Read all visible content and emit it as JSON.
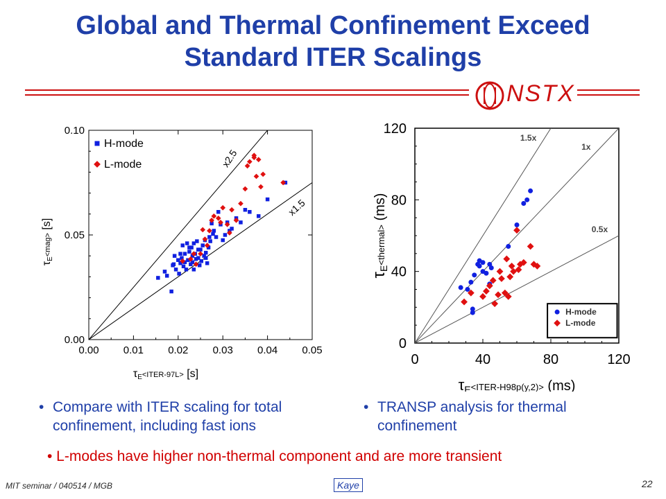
{
  "title": {
    "line1": "Global and Thermal Confinement Exceed",
    "line2": "Standard ITER Scalings"
  },
  "logo": {
    "text": "NSTX",
    "colors": {
      "accent": "#cc1010",
      "title": "#1f3fa8"
    }
  },
  "chart_data": [
    {
      "type": "scatter",
      "xlabel": "τE<ITER-97L> [s]",
      "ylabel": "τE<mag> [s]",
      "xlim": [
        0,
        0.05
      ],
      "ylim": [
        0,
        0.1
      ],
      "xticks": [
        "0.00",
        "0.01",
        "0.02",
        "0.03",
        "0.04",
        "0.05"
      ],
      "yticks": [
        "0.00",
        "0.05",
        "0.10"
      ],
      "lines": [
        {
          "label": "x2.5",
          "slope": 2.5
        },
        {
          "label": "x1.5",
          "slope": 1.5
        }
      ],
      "legend": "top-left",
      "series": [
        {
          "name": "H-mode",
          "color": "#1020e0",
          "marker": "square",
          "points": [
            [
              0.0155,
              0.0295
            ],
            [
              0.017,
              0.0325
            ],
            [
              0.0175,
              0.0305
            ],
            [
              0.0185,
              0.023
            ],
            [
              0.0188,
              0.0355
            ],
            [
              0.019,
              0.036
            ],
            [
              0.0192,
              0.04
            ],
            [
              0.0195,
              0.0335
            ],
            [
              0.02,
              0.038
            ],
            [
              0.0202,
              0.0315
            ],
            [
              0.0205,
              0.041
            ],
            [
              0.0208,
              0.039
            ],
            [
              0.021,
              0.045
            ],
            [
              0.0212,
              0.035
            ],
            [
              0.0215,
              0.037
            ],
            [
              0.0218,
              0.0335
            ],
            [
              0.022,
              0.046
            ],
            [
              0.0222,
              0.038
            ],
            [
              0.0225,
              0.042
            ],
            [
              0.0228,
              0.036
            ],
            [
              0.023,
              0.044
            ],
            [
              0.0232,
              0.037
            ],
            [
              0.0235,
              0.0335
            ],
            [
              0.0238,
              0.041
            ],
            [
              0.024,
              0.0385
            ],
            [
              0.0242,
              0.047
            ],
            [
              0.0245,
              0.039
            ],
            [
              0.0248,
              0.0355
            ],
            [
              0.025,
              0.043
            ],
            [
              0.0252,
              0.0375
            ],
            [
              0.0255,
              0.045
            ],
            [
              0.0258,
              0.04
            ],
            [
              0.026,
              0.0475
            ],
            [
              0.0262,
              0.0415
            ],
            [
              0.0265,
              0.0365
            ],
            [
              0.0268,
              0.044
            ],
            [
              0.027,
              0.049
            ],
            [
              0.0272,
              0.047
            ],
            [
              0.0275,
              0.0555
            ],
            [
              0.0278,
              0.0505
            ],
            [
              0.028,
              0.052
            ],
            [
              0.0285,
              0.049
            ],
            [
              0.029,
              0.061
            ],
            [
              0.0295,
              0.055
            ],
            [
              0.03,
              0.0475
            ],
            [
              0.0305,
              0.05
            ],
            [
              0.031,
              0.056
            ],
            [
              0.0315,
              0.052
            ],
            [
              0.032,
              0.053
            ],
            [
              0.033,
              0.058
            ],
            [
              0.034,
              0.056
            ],
            [
              0.035,
              0.062
            ],
            [
              0.036,
              0.061
            ],
            [
              0.038,
              0.059
            ],
            [
              0.04,
              0.067
            ],
            [
              0.044,
              0.075
            ],
            [
              0.0215,
              0.041
            ],
            [
              0.0225,
              0.044
            ],
            [
              0.0235,
              0.046
            ],
            [
              0.0245,
              0.043
            ],
            [
              0.0205,
              0.0365
            ],
            [
              0.0232,
              0.04
            ],
            [
              0.0262,
              0.039
            ]
          ]
        },
        {
          "name": "L-mode",
          "color": "#e01010",
          "marker": "diamond",
          "points": [
            [
              0.021,
              0.0375
            ],
            [
              0.0228,
              0.0385
            ],
            [
              0.0235,
              0.041
            ],
            [
              0.025,
              0.041
            ],
            [
              0.0255,
              0.0525
            ],
            [
              0.026,
              0.048
            ],
            [
              0.027,
              0.052
            ],
            [
              0.0275,
              0.057
            ],
            [
              0.028,
              0.059
            ],
            [
              0.029,
              0.058
            ],
            [
              0.0295,
              0.056
            ],
            [
              0.03,
              0.063
            ],
            [
              0.031,
              0.055
            ],
            [
              0.032,
              0.062
            ],
            [
              0.033,
              0.057
            ],
            [
              0.034,
              0.065
            ],
            [
              0.035,
              0.072
            ],
            [
              0.0355,
              0.083
            ],
            [
              0.036,
              0.085
            ],
            [
              0.037,
              0.087
            ],
            [
              0.037,
              0.088
            ],
            [
              0.0375,
              0.078
            ],
            [
              0.038,
              0.086
            ],
            [
              0.0385,
              0.073
            ],
            [
              0.039,
              0.079
            ],
            [
              0.0435,
              0.075
            ],
            [
              0.024,
              0.036
            ],
            [
              0.0315,
              0.051
            ],
            [
              0.0265,
              0.045
            ]
          ]
        }
      ]
    },
    {
      "type": "scatter",
      "xlabel": "τE<ITER-H98p(y,2)> (ms)",
      "ylabel": "τE<thermal> (ms)",
      "xlim": [
        0,
        120
      ],
      "ylim": [
        0,
        120
      ],
      "xticks": [
        "0",
        "40",
        "80",
        "120"
      ],
      "yticks": [
        "0",
        "40",
        "80",
        "120"
      ],
      "lines": [
        {
          "label": "1.5x",
          "slope": 1.5
        },
        {
          "label": "1x",
          "slope": 1
        },
        {
          "label": "0.5x",
          "slope": 0.5
        }
      ],
      "legend": "bottom-right",
      "series": [
        {
          "name": "H-mode",
          "color": "#1020e0",
          "marker": "circle",
          "points": [
            [
              27,
              31
            ],
            [
              31,
              30
            ],
            [
              34,
              19
            ],
            [
              34,
              17
            ],
            [
              35,
              38
            ],
            [
              37,
              44
            ],
            [
              38,
              46
            ],
            [
              40,
              45
            ],
            [
              40,
              40
            ],
            [
              42,
              39
            ],
            [
              44,
              33
            ],
            [
              45,
              42
            ],
            [
              55,
              54
            ],
            [
              60,
              66
            ],
            [
              64,
              78
            ],
            [
              66,
              80
            ],
            [
              68,
              85
            ],
            [
              38,
              43
            ],
            [
              44,
              44
            ],
            [
              33,
              34
            ]
          ]
        },
        {
          "name": "L-mode",
          "color": "#e01010",
          "marker": "diamond",
          "points": [
            [
              29,
              23
            ],
            [
              33,
              28
            ],
            [
              40,
              26
            ],
            [
              42,
              29
            ],
            [
              44,
              32
            ],
            [
              46,
              35
            ],
            [
              47,
              22
            ],
            [
              49,
              27
            ],
            [
              50,
              40
            ],
            [
              51,
              36
            ],
            [
              53,
              28
            ],
            [
              54,
              47
            ],
            [
              55,
              26
            ],
            [
              56,
              37
            ],
            [
              57,
              43
            ],
            [
              58,
              40
            ],
            [
              60,
              63
            ],
            [
              61,
              41
            ],
            [
              62,
              44
            ],
            [
              64,
              45
            ],
            [
              68,
              54
            ],
            [
              70,
              44
            ],
            [
              72,
              43
            ]
          ]
        }
      ]
    }
  ],
  "bullets": {
    "left": "Compare with ITER scaling for total confinement, including fast ions",
    "right": "TRANSP analysis for thermal confinement",
    "marker": "•"
  },
  "note": "• L-modes have higher non-thermal component and are more transient",
  "footer": {
    "seminar": "MIT seminar / 040514 / MGB",
    "author": "Kaye",
    "page": "22"
  }
}
